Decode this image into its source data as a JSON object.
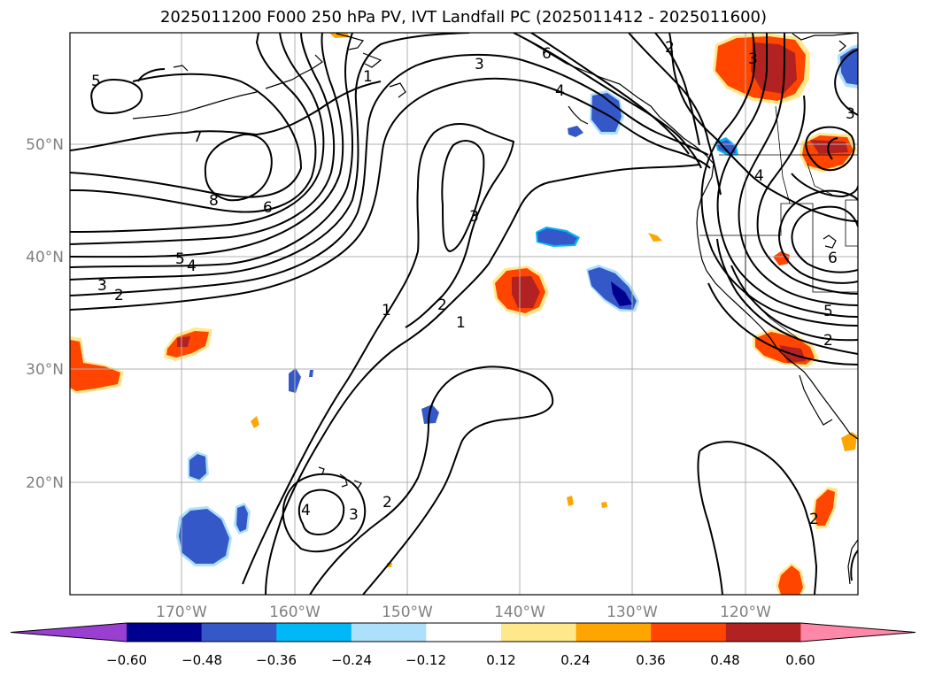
{
  "title": "2025011200 F000 250 hPa PV, IVT Landfall PC (2025011412 - 2025011600)",
  "lat_labels": [
    "50°N",
    "40°N",
    "30°N",
    "20°N"
  ],
  "lon_labels": [
    "170°W",
    "160°W",
    "150°W",
    "140°W",
    "130°W",
    "120°W"
  ],
  "contour_labels": [
    "5",
    "7",
    "8",
    "6",
    "5",
    "4",
    "3",
    "2",
    "3",
    "6",
    "4",
    "3",
    "2",
    "1",
    "2",
    "1",
    "3",
    "4",
    "3",
    "2",
    "1",
    "4",
    "6",
    "5",
    "2",
    "2",
    "3"
  ],
  "colorbar": {
    "ticks": [
      "−0.60",
      "−0.48",
      "−0.36",
      "−0.24",
      "−0.12",
      "0.12",
      "0.24",
      "0.36",
      "0.48",
      "0.60"
    ],
    "colors": [
      "#9a3fd1",
      "#000090",
      "#3558c8",
      "#00b8f8",
      "#ade0fa",
      "#ffffff",
      "#ffe88c",
      "#ffa500",
      "#ff4500",
      "#b22222",
      "#ff88a8"
    ]
  }
}
